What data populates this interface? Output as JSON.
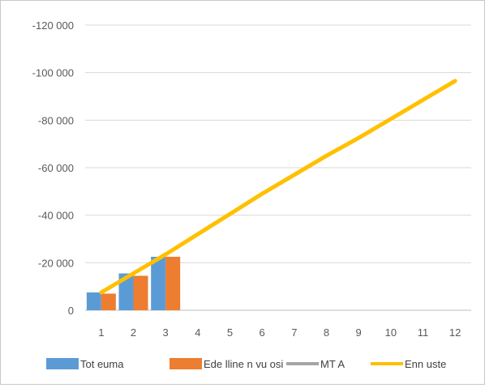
{
  "chart_data": {
    "type": "bar",
    "categories": [
      "1",
      "2",
      "3",
      "4",
      "5",
      "6",
      "7",
      "8",
      "9",
      "10",
      "11",
      "12"
    ],
    "y_ticks": [
      0,
      -20000,
      -40000,
      -60000,
      -80000,
      -100000,
      -120000
    ],
    "y_tick_labels": [
      "0",
      "-20 000",
      "-40 000",
      "-60 000",
      "-80 000",
      "-100 000",
      "-120 000"
    ],
    "ylim": [
      0,
      -120000
    ],
    "grid": true,
    "legend_position": "bottom",
    "series": [
      {
        "name": "Toteuma",
        "type": "bar",
        "color": "#5b9bd5",
        "values": [
          -7500,
          -15500,
          -22500,
          null,
          null,
          null,
          null,
          null,
          null,
          null,
          null,
          null
        ]
      },
      {
        "name": "Edellinen vuosi",
        "type": "bar",
        "color": "#ed7d31",
        "values": [
          -7000,
          -14500,
          -22500,
          null,
          null,
          null,
          null,
          null,
          null,
          null,
          null,
          null
        ]
      },
      {
        "name": "MTA",
        "type": "line",
        "color": "#a5a5a5",
        "values": [
          null,
          null,
          null,
          null,
          null,
          null,
          null,
          null,
          null,
          null,
          null,
          null
        ]
      },
      {
        "name": "Ennuste",
        "type": "line",
        "color": "#ffc000",
        "values": [
          -7500,
          -15500,
          -23500,
          -32000,
          -40500,
          -49000,
          -57000,
          -65000,
          -72500,
          -80500,
          -88500,
          -96500
        ]
      }
    ]
  },
  "legend": {
    "labels": [
      "Tot euma",
      "Ede lline n vu osi",
      "MT A",
      "Enn uste"
    ]
  }
}
